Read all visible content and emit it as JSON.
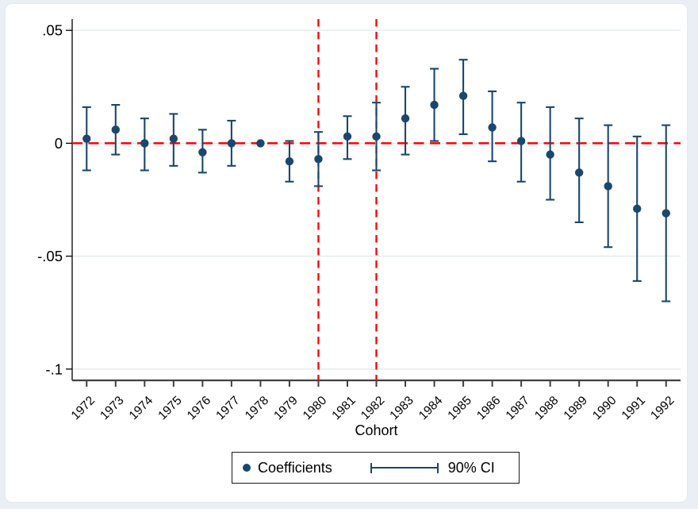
{
  "figure": {
    "xlabel": "Cohort",
    "legend": {
      "coefficients_label": "Coefficients",
      "ci_label": "90% CI"
    }
  },
  "chart_data": {
    "type": "scatter",
    "subtype": "coefficient-plot-with-error-bars",
    "title": "",
    "xlabel": "Cohort",
    "ylabel": "",
    "ylim": [
      -0.105,
      0.055
    ],
    "grid": true,
    "legend_position": "bottom-center",
    "legend_entries": [
      "Coefficients",
      "90% CI"
    ],
    "y_ticks": [
      {
        "value": 0.05,
        "label": ".05"
      },
      {
        "value": 0,
        "label": "0"
      },
      {
        "value": -0.05,
        "label": "-.05"
      },
      {
        "value": -0.1,
        "label": "-.1"
      }
    ],
    "categories": [
      "1972",
      "1973",
      "1974",
      "1975",
      "1976",
      "1977",
      "1978",
      "1979",
      "1980",
      "1981",
      "1982",
      "1983",
      "1984",
      "1985",
      "1986",
      "1987",
      "1988",
      "1989",
      "1990",
      "1991",
      "1992"
    ],
    "points": [
      {
        "year": "1972",
        "coef": 0.002,
        "lo": -0.012,
        "hi": 0.016
      },
      {
        "year": "1973",
        "coef": 0.006,
        "lo": -0.005,
        "hi": 0.017
      },
      {
        "year": "1974",
        "coef": 0.0,
        "lo": -0.012,
        "hi": 0.011
      },
      {
        "year": "1975",
        "coef": 0.002,
        "lo": -0.01,
        "hi": 0.013
      },
      {
        "year": "1976",
        "coef": -0.004,
        "lo": -0.013,
        "hi": 0.006
      },
      {
        "year": "1977",
        "coef": 0.0,
        "lo": -0.01,
        "hi": 0.01
      },
      {
        "year": "1978",
        "coef": 0.0,
        "lo": 0.0,
        "hi": 0.0,
        "reference": true
      },
      {
        "year": "1979",
        "coef": -0.008,
        "lo": -0.017,
        "hi": 0.001
      },
      {
        "year": "1980",
        "coef": -0.007,
        "lo": -0.019,
        "hi": 0.005
      },
      {
        "year": "1981",
        "coef": 0.003,
        "lo": -0.007,
        "hi": 0.012
      },
      {
        "year": "1982",
        "coef": 0.003,
        "lo": -0.012,
        "hi": 0.018
      },
      {
        "year": "1983",
        "coef": 0.011,
        "lo": -0.005,
        "hi": 0.025
      },
      {
        "year": "1984",
        "coef": 0.017,
        "lo": 0.001,
        "hi": 0.033
      },
      {
        "year": "1985",
        "coef": 0.021,
        "lo": 0.004,
        "hi": 0.037
      },
      {
        "year": "1986",
        "coef": 0.007,
        "lo": -0.008,
        "hi": 0.023
      },
      {
        "year": "1987",
        "coef": 0.001,
        "lo": -0.017,
        "hi": 0.018
      },
      {
        "year": "1988",
        "coef": -0.005,
        "lo": -0.025,
        "hi": 0.016
      },
      {
        "year": "1989",
        "coef": -0.013,
        "lo": -0.035,
        "hi": 0.011
      },
      {
        "year": "1990",
        "coef": -0.019,
        "lo": -0.046,
        "hi": 0.008
      },
      {
        "year": "1991",
        "coef": -0.029,
        "lo": -0.061,
        "hi": 0.003
      },
      {
        "year": "1992",
        "coef": -0.031,
        "lo": -0.07,
        "hi": 0.008
      }
    ],
    "reference_lines": {
      "horizontal_y": 0,
      "vertical_x": [
        "1980",
        "1982"
      ]
    },
    "colors": {
      "marker": "#1a476f",
      "reference": "#fb0007",
      "grid": "#e3e9ef",
      "axis": "#000000",
      "axis_bottom": "#404040",
      "background": "#e9eff5",
      "plot_background": "#ffffff"
    }
  }
}
